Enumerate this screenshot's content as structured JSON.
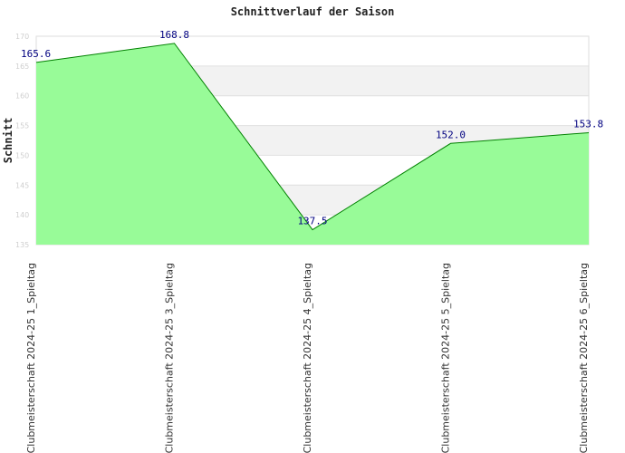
{
  "chart_data": {
    "type": "area",
    "title": "Schnittverlauf der Saison",
    "xlabel": "",
    "ylabel": "Schnitt",
    "categories": [
      "Clubmeisterschaft 2024-25  1_Spieltag",
      "Clubmeisterschaft 2024-25  3_Spieltag",
      "Clubmeisterschaft 2024-25  4_Spieltag",
      "Clubmeisterschaft 2024-25  5_Spieltag",
      "Clubmeisterschaft 2024-25  6_Spieltag"
    ],
    "values": [
      165.6,
      168.8,
      137.5,
      152.0,
      153.8
    ],
    "data_labels": [
      "165.6",
      "168.8",
      "137.5",
      "152.0",
      "153.8"
    ],
    "yticks": [
      135,
      140,
      145,
      150,
      155,
      160,
      165,
      170
    ],
    "ylim": [
      135,
      170
    ],
    "grid": "horizontal alternating bands",
    "legend": "none",
    "colors": {
      "fill": "#98fb98",
      "line": "#008000",
      "band": "#f2f2f2",
      "grid": "#e0e0e0",
      "label": "#000080"
    }
  }
}
